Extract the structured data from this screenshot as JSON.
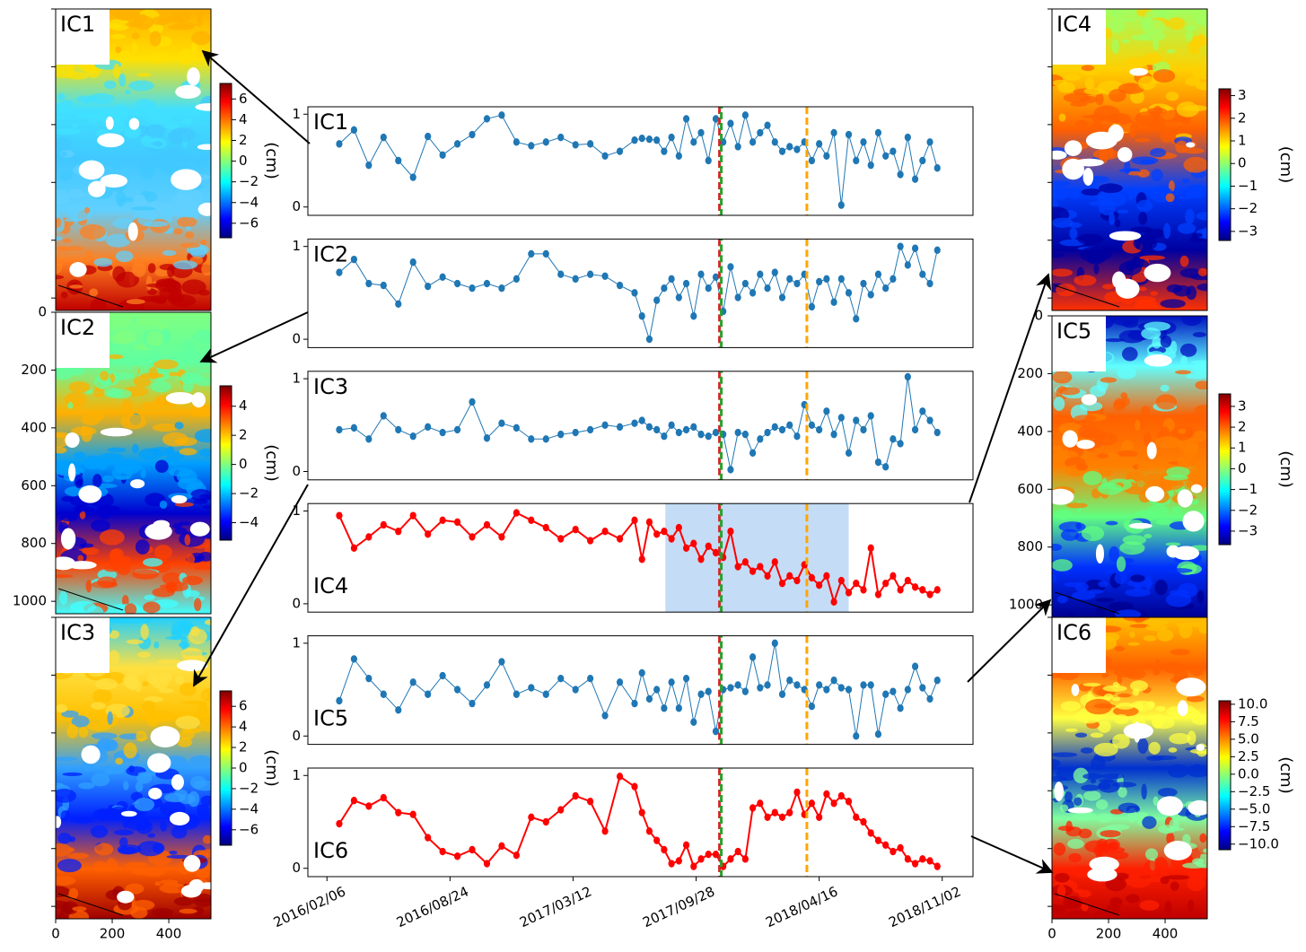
{
  "chart_data": {
    "type": "line",
    "x": [
      "2016/02/26",
      "2016/03/21",
      "2016/04/14",
      "2016/05/08",
      "2016/06/01",
      "2016/06/25",
      "2016/07/19",
      "2016/08/12",
      "2016/09/05",
      "2016/09/29",
      "2016/10/23",
      "2016/11/16",
      "2016/12/10",
      "2017/01/03",
      "2017/01/27",
      "2017/02/20",
      "2017/03/16",
      "2017/04/09",
      "2017/05/03",
      "2017/05/27",
      "2017/06/20",
      "2017/07/02",
      "2017/07/14",
      "2017/07/26",
      "2017/08/07",
      "2017/08/19",
      "2017/08/31",
      "2017/09/12",
      "2017/09/24",
      "2017/10/06",
      "2017/10/18",
      "2017/10/30",
      "2017/11/11",
      "2017/11/23",
      "2017/12/05",
      "2017/12/17",
      "2017/12/29",
      "2018/01/10",
      "2018/01/22",
      "2018/02/03",
      "2018/02/15",
      "2018/02/27",
      "2018/03/11",
      "2018/03/23",
      "2018/04/04",
      "2018/04/16",
      "2018/04/28",
      "2018/05/10",
      "2018/05/22",
      "2018/06/03",
      "2018/06/15",
      "2018/06/27",
      "2018/07/09",
      "2018/07/21",
      "2018/08/02",
      "2018/08/14",
      "2018/08/26",
      "2018/09/07",
      "2018/09/19",
      "2018/10/01",
      "2018/10/13",
      "2018/10/25"
    ],
    "series": [
      {
        "name": "IC1",
        "color": "#1f77b4",
        "values": [
          0.68,
          0.83,
          0.45,
          0.75,
          0.5,
          0.32,
          0.76,
          0.56,
          0.68,
          0.78,
          0.95,
          0.99,
          0.7,
          0.66,
          0.7,
          0.75,
          0.67,
          0.68,
          0.55,
          0.6,
          0.72,
          0.74,
          0.73,
          0.72,
          0.6,
          0.75,
          0.55,
          0.95,
          0.7,
          0.8,
          0.5,
          0.95,
          0.7,
          0.9,
          0.65,
          0.99,
          0.7,
          0.8,
          0.88,
          0.7,
          0.6,
          0.65,
          0.62,
          0.7,
          0.5,
          0.68,
          0.55,
          0.8,
          0.02,
          0.78,
          0.5,
          0.7,
          0.45,
          0.8,
          0.55,
          0.6,
          0.35,
          0.75,
          0.3,
          0.5,
          0.7,
          0.42
        ]
      },
      {
        "name": "IC2",
        "color": "#1f77b4",
        "values": [
          0.72,
          0.86,
          0.6,
          0.58,
          0.38,
          0.83,
          0.57,
          0.67,
          0.6,
          0.55,
          0.6,
          0.55,
          0.65,
          0.92,
          0.92,
          0.7,
          0.65,
          0.7,
          0.68,
          0.58,
          0.5,
          0.25,
          0.0,
          0.42,
          0.55,
          0.65,
          0.45,
          0.6,
          0.25,
          0.7,
          0.55,
          0.67,
          0.3,
          0.78,
          0.45,
          0.6,
          0.5,
          0.7,
          0.55,
          0.72,
          0.45,
          0.65,
          0.6,
          0.7,
          0.35,
          0.62,
          0.65,
          0.4,
          0.65,
          0.5,
          0.22,
          0.6,
          0.48,
          0.7,
          0.55,
          0.65,
          1.0,
          0.8,
          0.98,
          0.7,
          0.6,
          0.96
        ]
      },
      {
        "name": "IC3",
        "color": "#1f77b4",
        "values": [
          0.45,
          0.47,
          0.35,
          0.6,
          0.45,
          0.38,
          0.48,
          0.42,
          0.45,
          0.75,
          0.36,
          0.52,
          0.47,
          0.35,
          0.35,
          0.4,
          0.42,
          0.45,
          0.5,
          0.48,
          0.52,
          0.55,
          0.48,
          0.45,
          0.38,
          0.5,
          0.42,
          0.45,
          0.48,
          0.4,
          0.38,
          0.42,
          0.4,
          0.02,
          0.42,
          0.4,
          0.2,
          0.35,
          0.42,
          0.48,
          0.45,
          0.5,
          0.38,
          0.72,
          0.5,
          0.45,
          0.65,
          0.4,
          0.58,
          0.2,
          0.55,
          0.45,
          0.6,
          0.1,
          0.05,
          0.35,
          0.3,
          1.02,
          0.45,
          0.65,
          0.55,
          0.42
        ]
      },
      {
        "name": "IC4",
        "color": "#ff0000",
        "span": {
          "x": [
            "2017/08/09",
            "2018/06/03"
          ],
          "color": "#c4dcf6"
        },
        "values": [
          0.95,
          0.6,
          0.72,
          0.85,
          0.78,
          0.95,
          0.75,
          0.9,
          0.88,
          0.72,
          0.85,
          0.72,
          0.98,
          0.9,
          0.82,
          0.7,
          0.8,
          0.68,
          0.78,
          0.7,
          0.9,
          0.48,
          0.88,
          0.75,
          0.78,
          0.7,
          0.82,
          0.6,
          0.65,
          0.48,
          0.62,
          0.55,
          0.5,
          0.78,
          0.4,
          0.45,
          0.35,
          0.4,
          0.3,
          0.45,
          0.22,
          0.3,
          0.25,
          0.42,
          0.28,
          0.2,
          0.3,
          0.02,
          0.25,
          0.12,
          0.22,
          0.15,
          0.6,
          0.1,
          0.22,
          0.3,
          0.15,
          0.25,
          0.18,
          0.15,
          0.1,
          0.15
        ]
      },
      {
        "name": "IC5",
        "color": "#1f77b4",
        "values": [
          0.38,
          0.83,
          0.62,
          0.45,
          0.28,
          0.58,
          0.45,
          0.65,
          0.5,
          0.35,
          0.55,
          0.8,
          0.45,
          0.52,
          0.45,
          0.62,
          0.5,
          0.62,
          0.22,
          0.58,
          0.35,
          0.68,
          0.4,
          0.5,
          0.3,
          0.58,
          0.3,
          0.62,
          0.15,
          0.45,
          0.48,
          0.05,
          0.5,
          0.52,
          0.55,
          0.48,
          0.85,
          0.52,
          0.55,
          1.0,
          0.45,
          0.6,
          0.55,
          0.5,
          0.32,
          0.55,
          0.5,
          0.6,
          0.52,
          0.5,
          0.0,
          0.55,
          0.55,
          0.02,
          0.45,
          0.48,
          0.3,
          0.5,
          0.75,
          0.52,
          0.4,
          0.6
        ]
      },
      {
        "name": "IC6",
        "color": "#ff0000",
        "values": [
          0.48,
          0.73,
          0.67,
          0.76,
          0.6,
          0.58,
          0.33,
          0.18,
          0.13,
          0.2,
          0.05,
          0.24,
          0.14,
          0.55,
          0.5,
          0.63,
          0.78,
          0.72,
          0.4,
          0.99,
          0.88,
          0.6,
          0.4,
          0.3,
          0.2,
          0.05,
          0.08,
          0.25,
          0.02,
          0.1,
          0.15,
          0.15,
          0.02,
          0.1,
          0.18,
          0.1,
          0.65,
          0.7,
          0.55,
          0.6,
          0.55,
          0.6,
          0.82,
          0.58,
          0.7,
          0.55,
          0.8,
          0.7,
          0.78,
          0.72,
          0.55,
          0.5,
          0.38,
          0.3,
          0.25,
          0.18,
          0.22,
          0.1,
          0.05,
          0.1,
          0.08,
          0.02
        ]
      }
    ],
    "xlim": [
      "2016/01/06",
      "2018/12/22"
    ],
    "xticks": [
      "2016/02/06",
      "2016/08/24",
      "2017/03/12",
      "2017/09/28",
      "2018/04/16",
      "2018/11/02"
    ],
    "ylim": [
      -0.09,
      1.08
    ],
    "yticks": [
      0,
      1
    ],
    "vlines": [
      {
        "x": "2017/11/05",
        "color": "#d62728"
      },
      {
        "x": "2017/11/05",
        "color": "#2ca02c"
      },
      {
        "x": "2018/03/27",
        "color": "#ffa500"
      }
    ]
  },
  "maps": [
    {
      "label": "IC1",
      "unit": "(cm)",
      "clim": [
        -7.4,
        7.5
      ],
      "ticks": [
        6,
        4,
        2,
        0,
        {
          "value": -2,
          "label": "−2"
        },
        {
          "value": -4,
          "label": "−4"
        },
        {
          "value": -6,
          "label": "−6"
        }
      ]
    },
    {
      "label": "IC2",
      "unit": "(cm)",
      "clim": [
        -5.2,
        5.4
      ],
      "ticks": [
        4,
        2,
        0,
        {
          "value": -2,
          "label": "−2"
        },
        {
          "value": -4,
          "label": "−4"
        }
      ]
    },
    {
      "label": "IC3",
      "unit": "(cm)",
      "clim": [
        -7.5,
        7.5
      ],
      "ticks": [
        6,
        4,
        2,
        0,
        {
          "value": -2,
          "label": "−2"
        },
        {
          "value": -4,
          "label": "−4"
        },
        {
          "value": -6,
          "label": "−6"
        }
      ]
    },
    {
      "label": "IC4",
      "unit": "(cm)",
      "clim": [
        -3.4,
        3.3
      ],
      "ticks": [
        3,
        2,
        1,
        0,
        {
          "value": -1,
          "label": "−1"
        },
        {
          "value": -2,
          "label": "−2"
        },
        {
          "value": -3,
          "label": "−3"
        }
      ]
    },
    {
      "label": "IC5",
      "unit": "(cm)",
      "clim": [
        -3.65,
        3.6
      ],
      "ticks": [
        3,
        2,
        1,
        0,
        {
          "value": -1,
          "label": "−1"
        },
        {
          "value": -2,
          "label": "−2"
        },
        {
          "value": -3,
          "label": "−3"
        }
      ]
    },
    {
      "label": "IC6",
      "unit": "(cm)",
      "clim": [
        -10.8,
        10.5
      ],
      "ticks": [
        {
          "value": 10,
          "label": "10.0"
        },
        7.5,
        {
          "value": 5,
          "label": "5.0"
        },
        2.5,
        {
          "value": 0,
          "label": "0.0"
        },
        {
          "value": -2.5,
          "label": "−2.5"
        },
        {
          "value": -5,
          "label": "−5.0"
        },
        {
          "value": -7.5,
          "label": "−7.5"
        },
        {
          "value": -10,
          "label": "−10.0"
        }
      ]
    }
  ],
  "map_axes": {
    "xlim": [
      0,
      549
    ],
    "ylim": [
      0,
      1043
    ],
    "xticks": [
      0,
      200,
      400
    ],
    "yticks": [
      0,
      200,
      400,
      600,
      800,
      1000
    ]
  }
}
